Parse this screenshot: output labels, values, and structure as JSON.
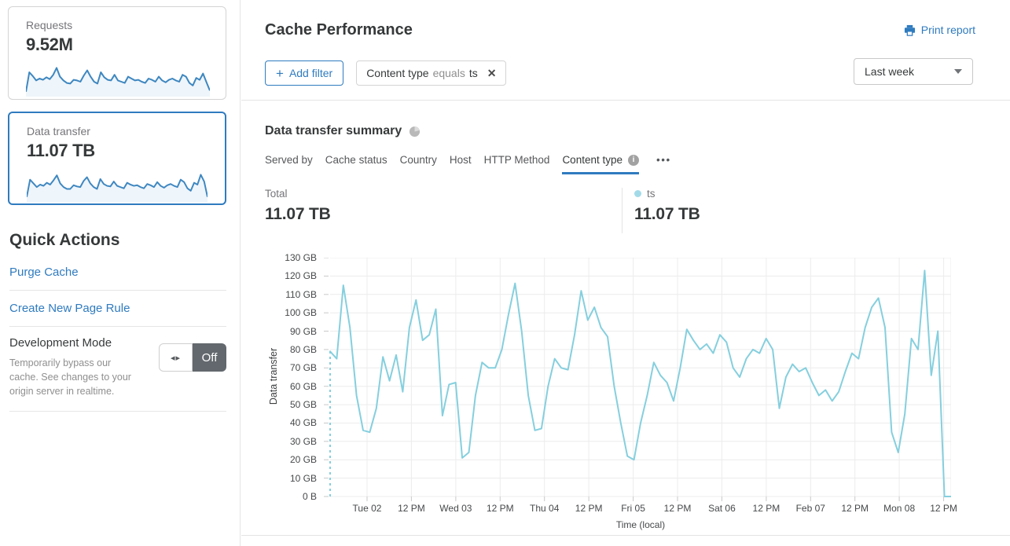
{
  "colors": {
    "accent_blue": "#2f7bbf",
    "chart_line": "#85cfde",
    "legend_dot": "#a3dae8",
    "sparkline": "#3e87c0",
    "toggle_off_bg": "#62686d"
  },
  "sidebar": {
    "requests_card": {
      "label": "Requests",
      "value": "9.52M",
      "sparkline": [
        8,
        70,
        58,
        44,
        50,
        46,
        54,
        48,
        62,
        84,
        56,
        44,
        36,
        34,
        46,
        44,
        40,
        60,
        76,
        56,
        40,
        34,
        70,
        54,
        46,
        44,
        62,
        44,
        40,
        36,
        56,
        50,
        44,
        46,
        40,
        36,
        50,
        46,
        40,
        56,
        44,
        38,
        46,
        50,
        44,
        40,
        62,
        56,
        36,
        28,
        52,
        46,
        66,
        38,
        12
      ]
    },
    "data_transfer_card": {
      "label": "Data transfer",
      "value": "11.07 TB",
      "sparkline": [
        10,
        66,
        54,
        42,
        50,
        46,
        56,
        50,
        64,
        80,
        54,
        42,
        36,
        36,
        48,
        44,
        42,
        62,
        74,
        54,
        42,
        36,
        68,
        52,
        46,
        44,
        60,
        46,
        42,
        38,
        56,
        50,
        46,
        48,
        42,
        38,
        52,
        48,
        42,
        58,
        46,
        40,
        48,
        52,
        46,
        42,
        66,
        58,
        38,
        30,
        56,
        50,
        82,
        60,
        10
      ]
    },
    "quick_actions": {
      "title": "Quick Actions",
      "links": [
        {
          "label": "Purge Cache"
        },
        {
          "label": "Create New Page Rule"
        }
      ],
      "development_mode": {
        "title": "Development Mode",
        "description": "Temporarily bypass our cache. See changes to your origin server in realtime.",
        "toggle_icon": "◂▸",
        "state_label": "Off"
      }
    }
  },
  "header": {
    "title": "Cache Performance",
    "print_report_label": "Print report"
  },
  "filters": {
    "add_filter": {
      "icon": "+",
      "label": "Add filter"
    },
    "chip": {
      "field": "Content type",
      "operator": "equals",
      "value": "ts",
      "remove_icon": "✕"
    },
    "time_range": "Last week"
  },
  "summary": {
    "title": "Data transfer summary",
    "tabs": [
      {
        "label": "Served by"
      },
      {
        "label": "Cache status"
      },
      {
        "label": "Country"
      },
      {
        "label": "Host"
      },
      {
        "label": "HTTP Method"
      },
      {
        "label": "Content type"
      }
    ],
    "active_tab": "Content type",
    "more_icon": "•••",
    "total": {
      "label": "Total",
      "value": "11.07 TB"
    },
    "ts_legend": {
      "label": "ts",
      "value": "11.07 TB",
      "dot_color": "#a3dae8"
    }
  },
  "chart_data": {
    "type": "line",
    "title": "Data transfer summary",
    "ylabel": "Data transfer",
    "xlabel": "Time (local)",
    "ylim_gb": [
      0,
      130
    ],
    "y_tick_labels": [
      "130 GB",
      "120 GB",
      "110 GB",
      "100 GB",
      "90 GB",
      "80 GB",
      "70 GB",
      "60 GB",
      "50 GB",
      "40 GB",
      "30 GB",
      "20 GB",
      "10 GB",
      "0 B"
    ],
    "x_tick_labels": [
      "Tue 02",
      "12 PM",
      "Wed 03",
      "12 PM",
      "Thu 04",
      "12 PM",
      "Fri 05",
      "12 PM",
      "Sat 06",
      "12 PM",
      "Feb 07",
      "12 PM",
      "Mon 08",
      "12 PM"
    ],
    "grid": true,
    "legend_position": "above-right",
    "dashed_leading_edge": true,
    "series": [
      {
        "name": "ts",
        "color": "#85cfde",
        "unit": "GB",
        "total": "11.07 TB",
        "values_gb": [
          79,
          75,
          115,
          92,
          55,
          36,
          35,
          48,
          76,
          63,
          77,
          57,
          92,
          107,
          85,
          88,
          102,
          44,
          61,
          62,
          21,
          24,
          55,
          73,
          70,
          70,
          80,
          99,
          116,
          90,
          55,
          36,
          37,
          60,
          75,
          70,
          69,
          88,
          112,
          96,
          103,
          92,
          87,
          60,
          40,
          22,
          20,
          40,
          55,
          73,
          66,
          62,
          52,
          70,
          91,
          85,
          80,
          83,
          78,
          88,
          84,
          70,
          65,
          75,
          80,
          78,
          86,
          80,
          48,
          65,
          72,
          68,
          70,
          62,
          55,
          58,
          52,
          57,
          68,
          78,
          75,
          92,
          103,
          108,
          92,
          35,
          24,
          45,
          86,
          80,
          123,
          66,
          90,
          0,
          0
        ]
      }
    ]
  }
}
